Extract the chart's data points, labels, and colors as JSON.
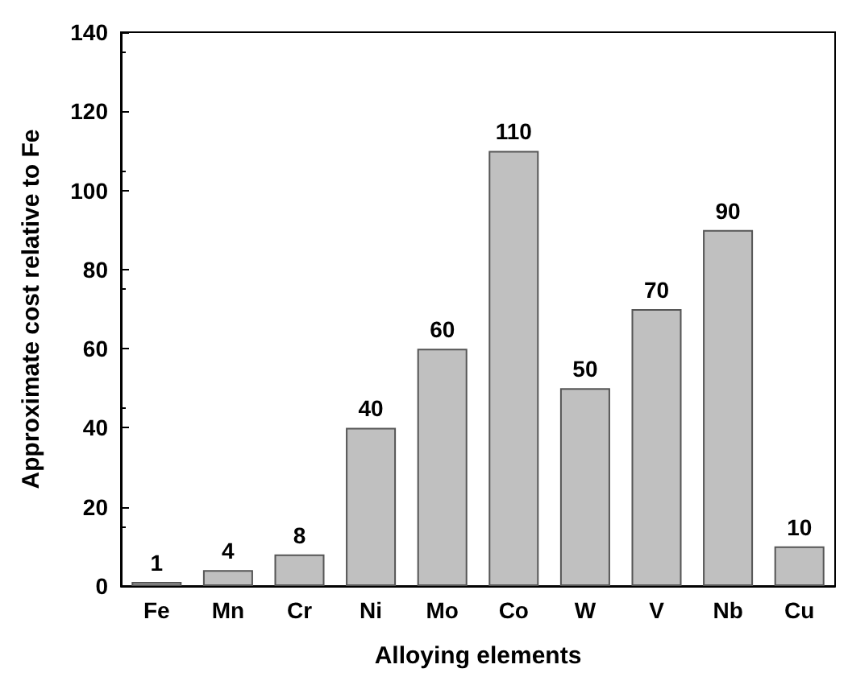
{
  "chart_data": {
    "type": "bar",
    "xlabel": "Alloying elements",
    "ylabel": "Approximate cost relative to Fe",
    "categories": [
      "Fe",
      "Mn",
      "Cr",
      "Ni",
      "Mo",
      "Co",
      "W",
      "V",
      "Nb",
      "Cu"
    ],
    "values": [
      1,
      4,
      8,
      40,
      60,
      110,
      50,
      70,
      90,
      10
    ],
    "color": "#c0c0c0",
    "ylim": [
      0,
      140
    ],
    "yticks": [
      0,
      20,
      40,
      60,
      80,
      100,
      120,
      140
    ],
    "grid": false,
    "data_labels": true
  }
}
